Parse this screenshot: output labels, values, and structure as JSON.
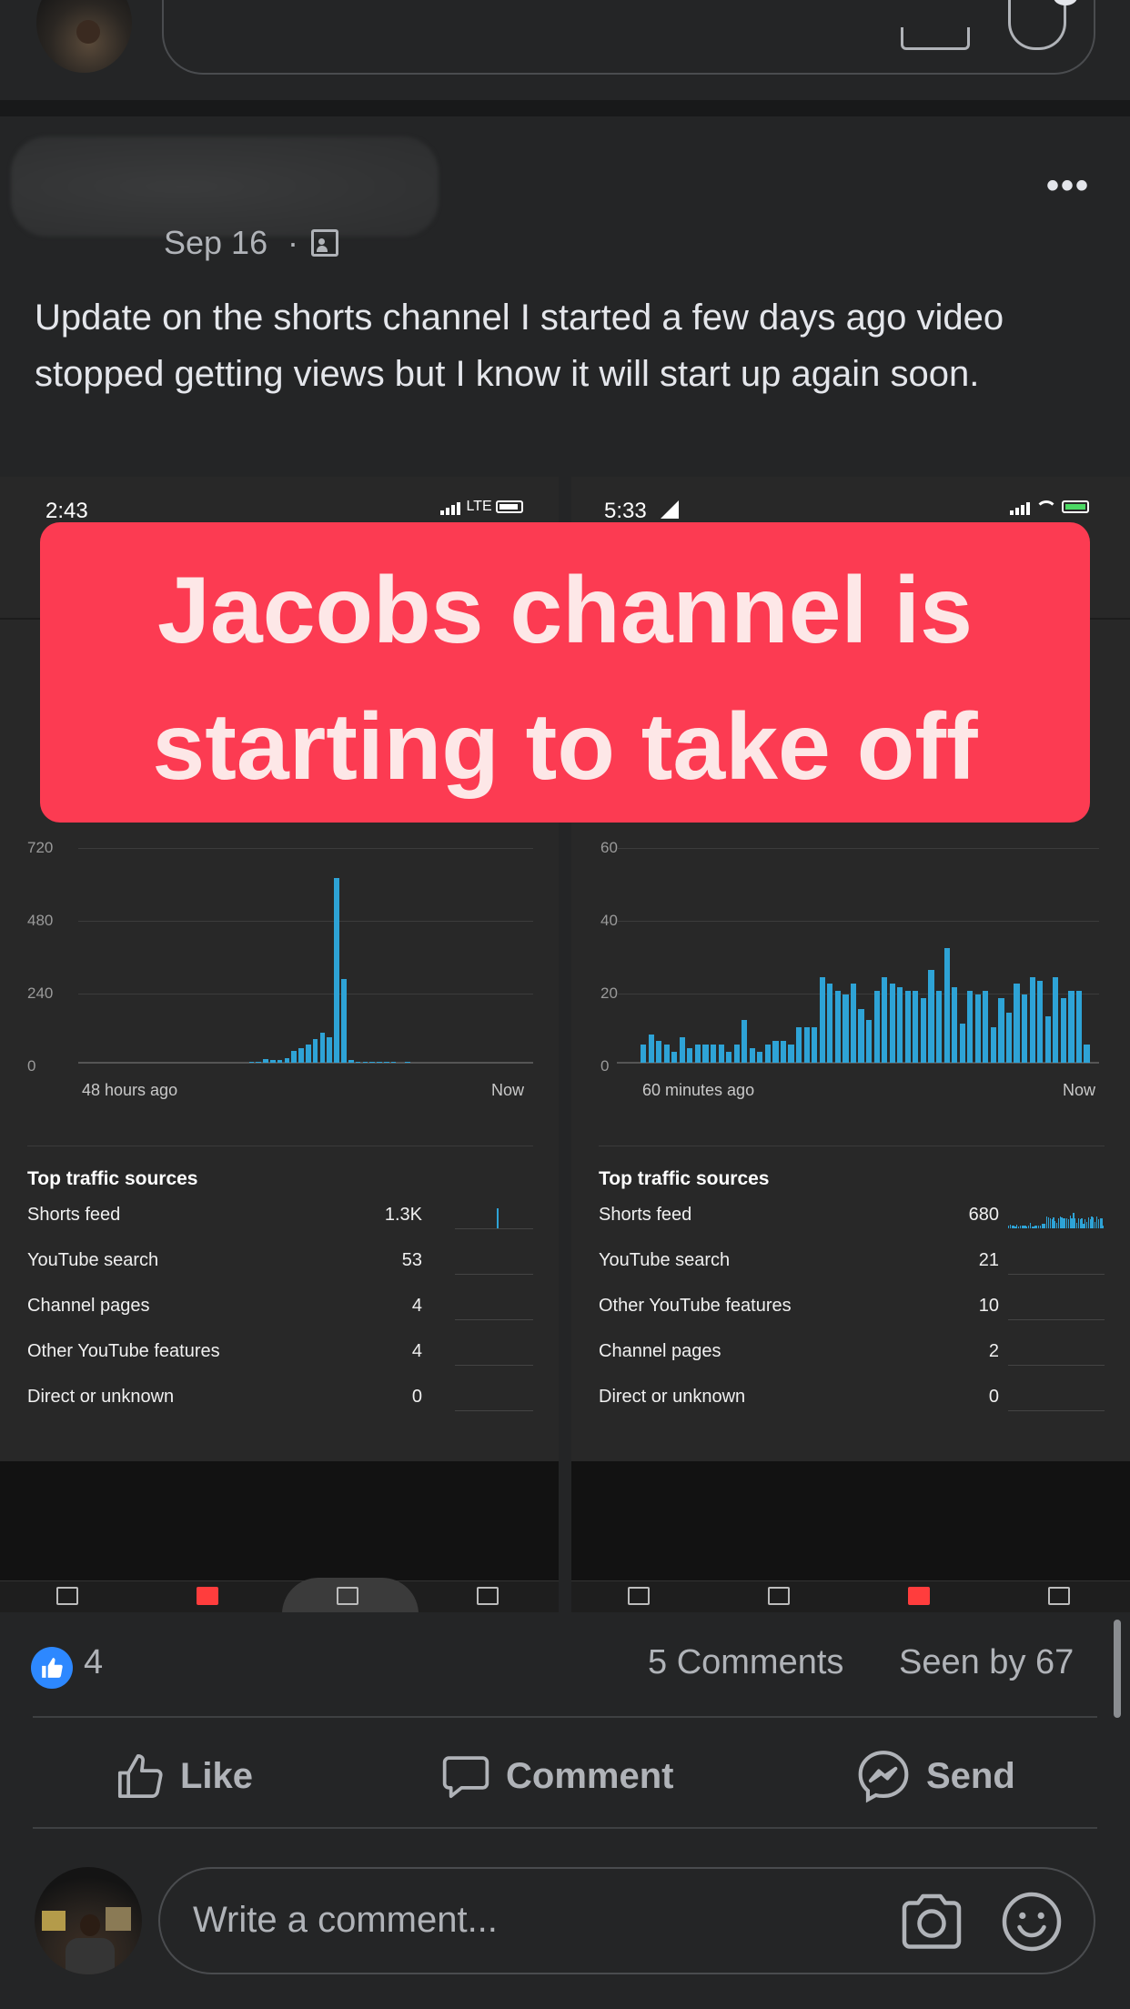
{
  "post": {
    "date": "Sep 16",
    "dot": "·",
    "more_label": "•••",
    "privacy_icon": "group-members-icon",
    "text": "Update on the shorts channel I started a few days ago video stopped getting views but I know it will start up again soon."
  },
  "overlay": {
    "line1": "Jacobs channel is",
    "line2": "starting to take off",
    "color": "#fc3b52"
  },
  "left_screenshot": {
    "status_time": "2:43",
    "status_network": "LTE",
    "x_start_label": "48 hours ago",
    "x_end_label": "Now",
    "traffic_title": "Top traffic sources",
    "traffic": [
      {
        "name": "Shorts feed",
        "value": "1.3K"
      },
      {
        "name": "YouTube search",
        "value": "53"
      },
      {
        "name": "Channel pages",
        "value": "4"
      },
      {
        "name": "Other YouTube features",
        "value": "4"
      },
      {
        "name": "Direct or unknown",
        "value": "0"
      }
    ]
  },
  "right_screenshot": {
    "status_time": "5:33",
    "x_start_label": "60 minutes ago",
    "x_end_label": "Now",
    "traffic_title": "Top traffic sources",
    "traffic": [
      {
        "name": "Shorts feed",
        "value": "680"
      },
      {
        "name": "YouTube search",
        "value": "21"
      },
      {
        "name": "Other YouTube features",
        "value": "10"
      },
      {
        "name": "Channel pages",
        "value": "2"
      },
      {
        "name": "Direct or unknown",
        "value": "0"
      }
    ]
  },
  "chart_data": [
    {
      "type": "bar",
      "x_start": "48 hours ago",
      "x_end": "Now",
      "ylim": [
        0,
        720
      ],
      "yticks": [
        "720",
        "480",
        "240",
        "0"
      ],
      "bar_color": "#2ea3d6",
      "values": [
        0,
        0,
        0,
        0,
        0,
        0,
        0,
        0,
        0,
        0,
        0,
        0,
        0,
        0,
        0,
        0,
        0,
        0,
        0,
        0,
        0,
        0,
        0,
        0,
        2,
        4,
        12,
        10,
        10,
        16,
        40,
        50,
        60,
        80,
        100,
        85,
        620,
        280,
        8,
        4,
        3,
        3,
        3,
        2,
        2,
        0,
        2,
        0,
        0,
        0,
        0,
        0,
        0,
        0,
        0,
        0,
        0,
        0,
        0,
        0,
        0,
        0,
        0,
        0
      ]
    },
    {
      "type": "bar",
      "x_start": "60 minutes ago",
      "x_end": "Now",
      "ylim": [
        0,
        60
      ],
      "yticks": [
        "60",
        "40",
        "20",
        "0"
      ],
      "bar_color": "#2ea3d6",
      "values": [
        5,
        8,
        6,
        5,
        3,
        7,
        4,
        5,
        5,
        5,
        5,
        3,
        5,
        12,
        4,
        3,
        5,
        6,
        6,
        5,
        10,
        10,
        10,
        24,
        22,
        20,
        19,
        22,
        15,
        12,
        20,
        24,
        22,
        21,
        20,
        20,
        18,
        26,
        20,
        32,
        21,
        11,
        20,
        19,
        20,
        10,
        18,
        14,
        22,
        19,
        24,
        23,
        13,
        24,
        18,
        20,
        20,
        5
      ]
    }
  ],
  "reactions": {
    "count": "4",
    "comments": "5 Comments",
    "seen_by": "Seen by 67"
  },
  "actions": {
    "like": "Like",
    "comment": "Comment",
    "send": "Send"
  },
  "composer": {
    "placeholder": "Write a comment...",
    "camera_icon": "camera-icon",
    "emoji_icon": "emoji-icon"
  }
}
